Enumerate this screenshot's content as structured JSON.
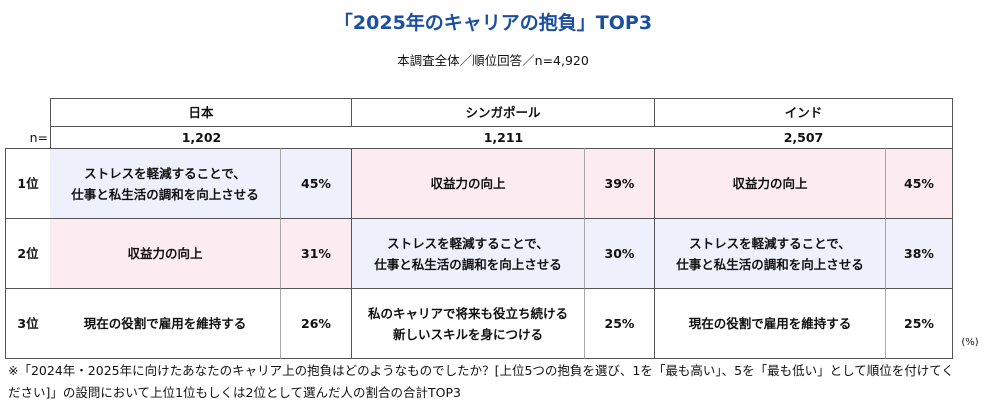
{
  "header": {
    "title": "「2025年のキャリアの抱負」TOP3",
    "subtitle": "本調査全体／順位回答／n=4,920"
  },
  "table": {
    "n_label": "n=",
    "columns": [
      {
        "name": "日本",
        "n": "1,202"
      },
      {
        "name": "シンガポール",
        "n": "1,211"
      },
      {
        "name": "インド",
        "n": "2,507"
      }
    ],
    "rows": [
      {
        "rank": "1位",
        "cells": [
          {
            "lines": [
              "ストレスを軽減することで、",
              "仕事と私生活の調和を向上させる"
            ],
            "pct": "45%"
          },
          {
            "lines": [
              "収益力の向上"
            ],
            "pct": "39%"
          },
          {
            "lines": [
              "収益力の向上"
            ],
            "pct": "45%"
          }
        ]
      },
      {
        "rank": "2位",
        "cells": [
          {
            "lines": [
              "収益力の向上"
            ],
            "pct": "31%"
          },
          {
            "lines": [
              "ストレスを軽減することで、",
              "仕事と私生活の調和を向上させる"
            ],
            "pct": "30%"
          },
          {
            "lines": [
              "ストレスを軽減することで、",
              "仕事と私生活の調和を向上させる"
            ],
            "pct": "38%"
          }
        ]
      },
      {
        "rank": "3位",
        "cells": [
          {
            "lines": [
              "現在の役割で雇用を維持する"
            ],
            "pct": "26%"
          },
          {
            "lines": [
              "私のキャリアで将来も役立ち続ける",
              "新しいスキルを身につける"
            ],
            "pct": "25%"
          },
          {
            "lines": [
              "現在の役割で雇用を維持する"
            ],
            "pct": "25%"
          }
        ]
      }
    ],
    "unit": "(%)"
  },
  "footnote": "※「2024年・2025年に向けたあなたのキャリア上の抱負はどのようなものでしたか？[上位5つの抱負を選び、1を「最も高い」、5を「最も低い」として順位を付けてください]」の設問において上位1位もしくは2位として選んだ人の割合の合計TOP3"
}
